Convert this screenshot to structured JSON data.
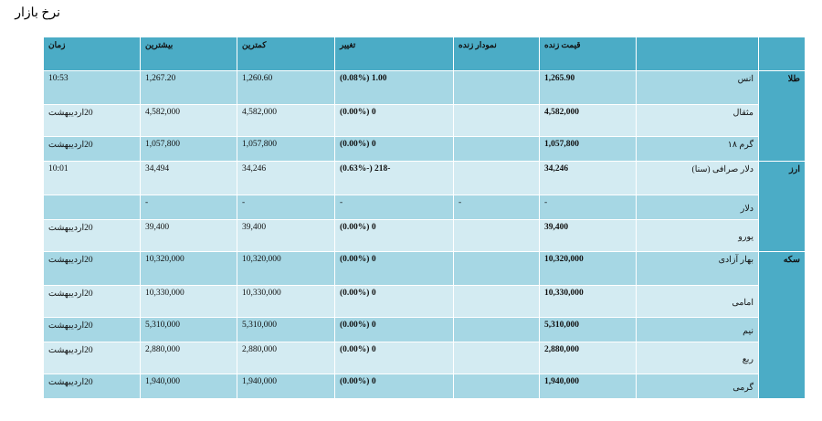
{
  "page_title": "نرخ بازار",
  "headers": {
    "name": "",
    "live_price": "قیمت زنده",
    "live_chart": "نمودار زنده",
    "change": "تغییر",
    "low": "کمترین",
    "high": "بیشترین",
    "time": "زمان"
  },
  "groups": [
    {
      "category": "طلا",
      "rows": [
        {
          "name": "انس",
          "price": "1,265.90",
          "chart": "",
          "change": "1.00 (0.08%)",
          "low": "1,260.60",
          "high": "1,267.20",
          "time": "10:53"
        },
        {
          "name": "مثقال",
          "price": "4,582,000",
          "chart": "",
          "change": "0 (0.00%)",
          "low": "4,582,000",
          "high": "4,582,000",
          "time": "20اردیبهشت"
        },
        {
          "name": "گرم ۱۸",
          "price": "1,057,800",
          "chart": "",
          "change": "0 (0.00%)",
          "low": "1,057,800",
          "high": "1,057,800",
          "time": "20اردیبهشت"
        }
      ]
    },
    {
      "category": "ارز",
      "rows": [
        {
          "name": "دلار صرافی (سنا)",
          "price": "34,246",
          "chart": "",
          "change": "-218 (-0.63%)",
          "low": "34,246",
          "high": "34,494",
          "time": "10:01"
        },
        {
          "name": "دلار",
          "price": "-",
          "chart": "-",
          "change": "-",
          "low": "-",
          "high": "-",
          "time": ""
        },
        {
          "name": "یورو",
          "price": "39,400",
          "chart": "",
          "change": "0 (0.00%)",
          "low": "39,400",
          "high": "39,400",
          "time": "20اردیبهشت"
        }
      ]
    },
    {
      "category": "سکه",
      "rows": [
        {
          "name": "بهار آزادی",
          "price": "10,320,000",
          "chart": "",
          "change": "0 (0.00%)",
          "low": "10,320,000",
          "high": "10,320,000",
          "time": "20اردیبهشت"
        },
        {
          "name": "امامی",
          "price": "10,330,000",
          "chart": "",
          "change": "0 (0.00%)",
          "low": "10,330,000",
          "high": "10,330,000",
          "time": "20اردیبهشت"
        },
        {
          "name": "نیم",
          "price": "5,310,000",
          "chart": "",
          "change": "0 (0.00%)",
          "low": "5,310,000",
          "high": "5,310,000",
          "time": "20اردیبهشت"
        },
        {
          "name": "ربع",
          "price": "2,880,000",
          "chart": "",
          "change": "0 (0.00%)",
          "low": "2,880,000",
          "high": "2,880,000",
          "time": "20اردیبهشت"
        },
        {
          "name": "گرمی",
          "price": "1,940,000",
          "chart": "",
          "change": "0 (0.00%)",
          "low": "1,940,000",
          "high": "1,940,000",
          "time": "20اردیبهشت"
        }
      ]
    }
  ],
  "colors": {
    "header": "#4bacc6",
    "row_dark": "#a6d7e4",
    "row_light": "#d3ebf2"
  }
}
